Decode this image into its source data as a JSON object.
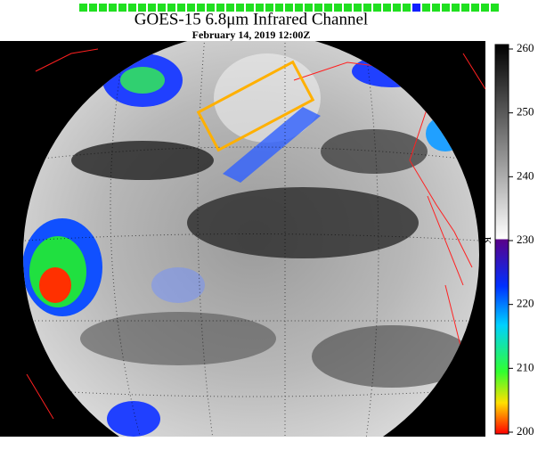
{
  "header": {
    "title": "GOES-15 6.8μm Infrared Channel",
    "subtitle": "February 14, 2019 12:00Z"
  },
  "colorbar": {
    "label": "K",
    "range": [
      200,
      260
    ],
    "ticks": [
      200,
      210,
      220,
      230,
      240,
      250,
      260
    ]
  }
}
